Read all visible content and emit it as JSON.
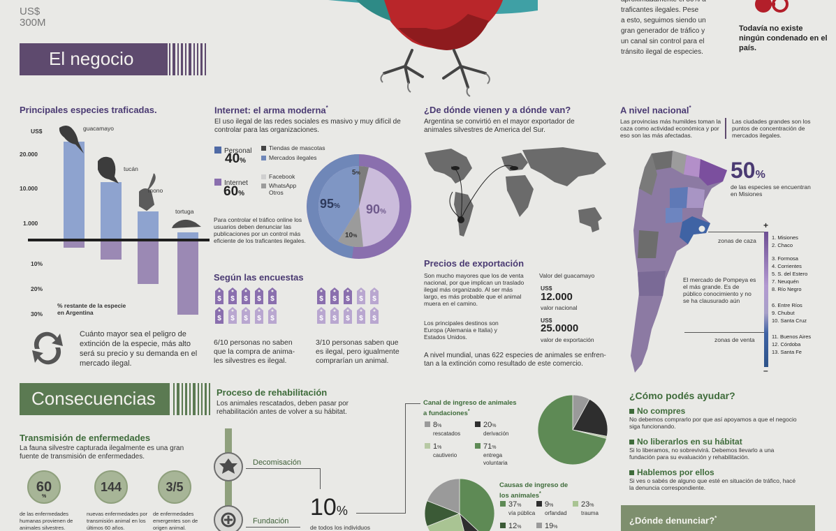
{
  "colors": {
    "purple_dark": "#4a3a72",
    "purple_banner": "#5e4a6e",
    "green_banner": "#5b7a52",
    "blue": "#6f87b8",
    "purple": "#8d77a8",
    "green": "#5e8a55"
  },
  "top": {
    "currency": "US$",
    "value": "300M",
    "text_lines": [
      "aproximadamente el 80% a traficantes ilegales. Pese",
      "a esto, seguimos siendo un",
      "gran generador de tráfico y",
      "un canal sin control para el",
      "tránsito ilegal de especies."
    ],
    "notice": "Todavía no existe ningún condenado en el país.",
    "handcuffs_icon": "handcuffs-icon"
  },
  "negocio": {
    "banner_title": "El negocio",
    "especies": {
      "title": "Principales especies traficadas.",
      "y_unit": "US$",
      "ticks_top": [
        "20.000",
        "10.000",
        "1.000"
      ],
      "ticks_bottom": [
        "10%",
        "20%",
        "30%"
      ],
      "bottom_label": "% restante de la especie en Argentina",
      "animals": [
        "guacamayo",
        "tucán",
        "mono",
        "tortuga"
      ],
      "caption": "Cuánto mayor sea el peligro de extinción de la especie, más alto será su precio y su demanda en el mercado ilegal.",
      "cycle_icon": "recycle-arrows-icon"
    },
    "internet": {
      "title": "Internet: el arma moderna",
      "title_mark": "*",
      "intro": "El uso ilegal de las redes sociales es masivo y muy difícil de controlar para las organizaciones.",
      "personal_label": "Personal",
      "personal_value": "40",
      "internet_label": "Internet",
      "internet_value": "60",
      "pct_sign": "%",
      "legend": [
        "Tiendas de mascotas",
        "Mercados ilegales",
        "Facebook",
        "WhatsApp",
        "Otros"
      ],
      "donut_labels": {
        "outer": "95%",
        "right": "90%",
        "small_top": "5%",
        "small_bottom": "10%"
      },
      "footer": "Para controlar el tráfico online los usuarios deben denunciar las publicaciones por un control más eficiente de los traficantes ilegales."
    },
    "encuestas": {
      "title": "Según las encuestas",
      "left_text": "6/10 personas no saben que la compra de anima- les silvestres es ilegal.",
      "right_text": "3/10 personas saben que es ilegal, pero igualmente comprarían un animal."
    },
    "origen": {
      "title": "¿De dónde vienen y a dónde van?",
      "text": "Argentina se convirtió en el mayor exportador de animales silvestres de America del Sur."
    },
    "precios": {
      "title": "Precios de exportación",
      "text1": "Son mucho mayores que los de venta nacional, por que implican un traslado ilegal más organizado. Al ser más largo, es más probable que el animal muera en el camino.",
      "text2": "Los principales destinos son Europa (Alemania e Italia) y Estados Unidos.",
      "guacamayo_label": "Valor del guacamayo",
      "nacional_currency": "US$",
      "nacional_value": "12.000",
      "nacional_label": "valor nacional",
      "export_currency": "US$",
      "export_value": "25.0000",
      "export_label": "valor de exportación",
      "global_text": "A nivel mundial, unas 622 especies de animales se enfren- tan a la extinción como resultado de este comercio."
    },
    "nacional": {
      "title": "A nivel nacional",
      "title_mark": "*",
      "text_left": "Las provincias más humildes toman la caza como actividad económica y por eso son las más afectadas.",
      "text_right": "Las ciudades grandes son los puntos de concentración de mercados ilegales.",
      "big_value": "50",
      "big_pct": "%",
      "big_caption": "de las especies se encuentran en Misiones",
      "plus": "+",
      "minus": "–",
      "zona_caza": "zonas de caza",
      "zona_venta": "zonas de venta",
      "pompeya": "El mercado de Pompeya es el más grande. Es de público conocimiento y no se ha clausurado aún",
      "provinces_a": [
        "1. Misiones",
        "2. Chaco"
      ],
      "provinces_b": [
        "3. Formosa",
        "4. Corrientes",
        "5. S. del Estero",
        "7. Neuquén",
        "8. Río Negro"
      ],
      "provinces_c": [
        "6. Entre Ríos",
        "9. Chubut",
        "10. Santa Cruz"
      ],
      "provinces_d": [
        "11. Buenos Aires",
        "12. Córdoba",
        "13. Santa Fe"
      ]
    }
  },
  "consecuencias": {
    "banner_title": "Consecuencias",
    "enfermedades": {
      "title": "Transmisión de enfermedades",
      "text": "La fauna silvestre capturada ilegalmente es una gran fuente de transmisión de enfermedades.",
      "stats": [
        {
          "value": "60",
          "unit": "%",
          "caption": "de las enfermedades humanas provienen de animales silvestres."
        },
        {
          "value": "144",
          "unit": "",
          "caption": "nuevas enfermedades por transmisión animal en los últimos 60 años."
        },
        {
          "value": "3/5",
          "unit": "",
          "caption": "de enfermedades emergentes son de origen animal."
        }
      ]
    },
    "rehabilitacion": {
      "title": "Proceso de rehabilitación",
      "text": "Los animales rescatados, deben pasar por rehabilitación antes de volver a su hábitat.",
      "step1": "Decomisación",
      "step2": "Fundación",
      "big_value": "10",
      "big_pct": "%",
      "big_caption": "de todos los individuos"
    },
    "canal": {
      "title": "Canal de ingreso de animales a fundaciones",
      "title_mark": "*",
      "items": [
        {
          "value": "8",
          "label": "rescatados",
          "color": "#9a9a9a"
        },
        {
          "value": "20",
          "label": "derivación",
          "color": "#2e2e2e"
        },
        {
          "value": "1",
          "label": "cautiverio",
          "color": "#b7c9a4"
        },
        {
          "value": "71",
          "label": "entrega voluntaria",
          "color": "#5e8a55"
        }
      ]
    },
    "causas": {
      "title": "Causas de ingreso de los animales",
      "title_mark": "*",
      "items": [
        {
          "value": "37",
          "label": "vía pública",
          "color": "#5e8a55"
        },
        {
          "value": "9",
          "label": "orfandad",
          "color": "#2e2e2e"
        },
        {
          "value": "23",
          "label": "trauma",
          "color": "#a9c493"
        },
        {
          "value": "12",
          "label": "",
          "color": "#3b5a36"
        },
        {
          "value": "19",
          "label": "",
          "color": "#9a9a9a"
        }
      ]
    },
    "ayudar": {
      "title": "¿Cómo podés ayudar?",
      "items": [
        {
          "title": "No compres",
          "text": "No debemos comprarlo por que así apoyamos a que el negocio siga funcionando."
        },
        {
          "title": "No liberarlos en su hábitat",
          "text": "Si lo liberamos, no sobrevivirá. Debemos llevarlo a una fundación para su evaluación y rehabilitación."
        },
        {
          "title": "Hablemos por ellos",
          "text": "Si ves o sabés de alguno que esté en situación de tráfico, hacé la denuncia correspondiente."
        }
      ],
      "denunciar": "¿Dónde denunciar?",
      "denunciar_mark": "*"
    }
  }
}
